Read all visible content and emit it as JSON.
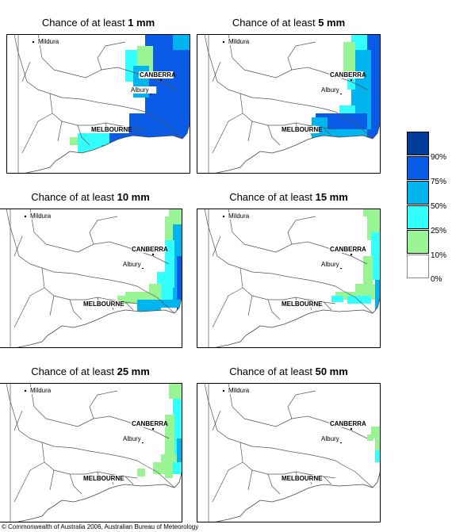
{
  "panels": [
    {
      "prefix": "Chance of at least ",
      "amount": "1 mm"
    },
    {
      "prefix": "Chance of at least ",
      "amount": "5 mm"
    },
    {
      "prefix": "Chance of at least ",
      "amount": "10 mm"
    },
    {
      "prefix": "Chance of at least ",
      "amount": "15 mm"
    },
    {
      "prefix": "Chance of at least ",
      "amount": "25 mm"
    },
    {
      "prefix": "Chance of at least ",
      "amount": "50 mm"
    }
  ],
  "cities": {
    "mildura": "Mildura",
    "canberra": "CANBERRA",
    "albury": "Albury",
    "melbourne": "MELBOURNE"
  },
  "legend": {
    "labels": [
      "90%",
      "75%",
      "50%",
      "25%",
      "10%",
      "0%"
    ],
    "colors": [
      "#003c9a",
      "#0a5ce6",
      "#00b4f0",
      "#33ffff",
      "#99f593",
      "#ffffff"
    ]
  },
  "footer": "© Commonwealth of Australia 2006, Australian Bureau of Meteorology"
}
